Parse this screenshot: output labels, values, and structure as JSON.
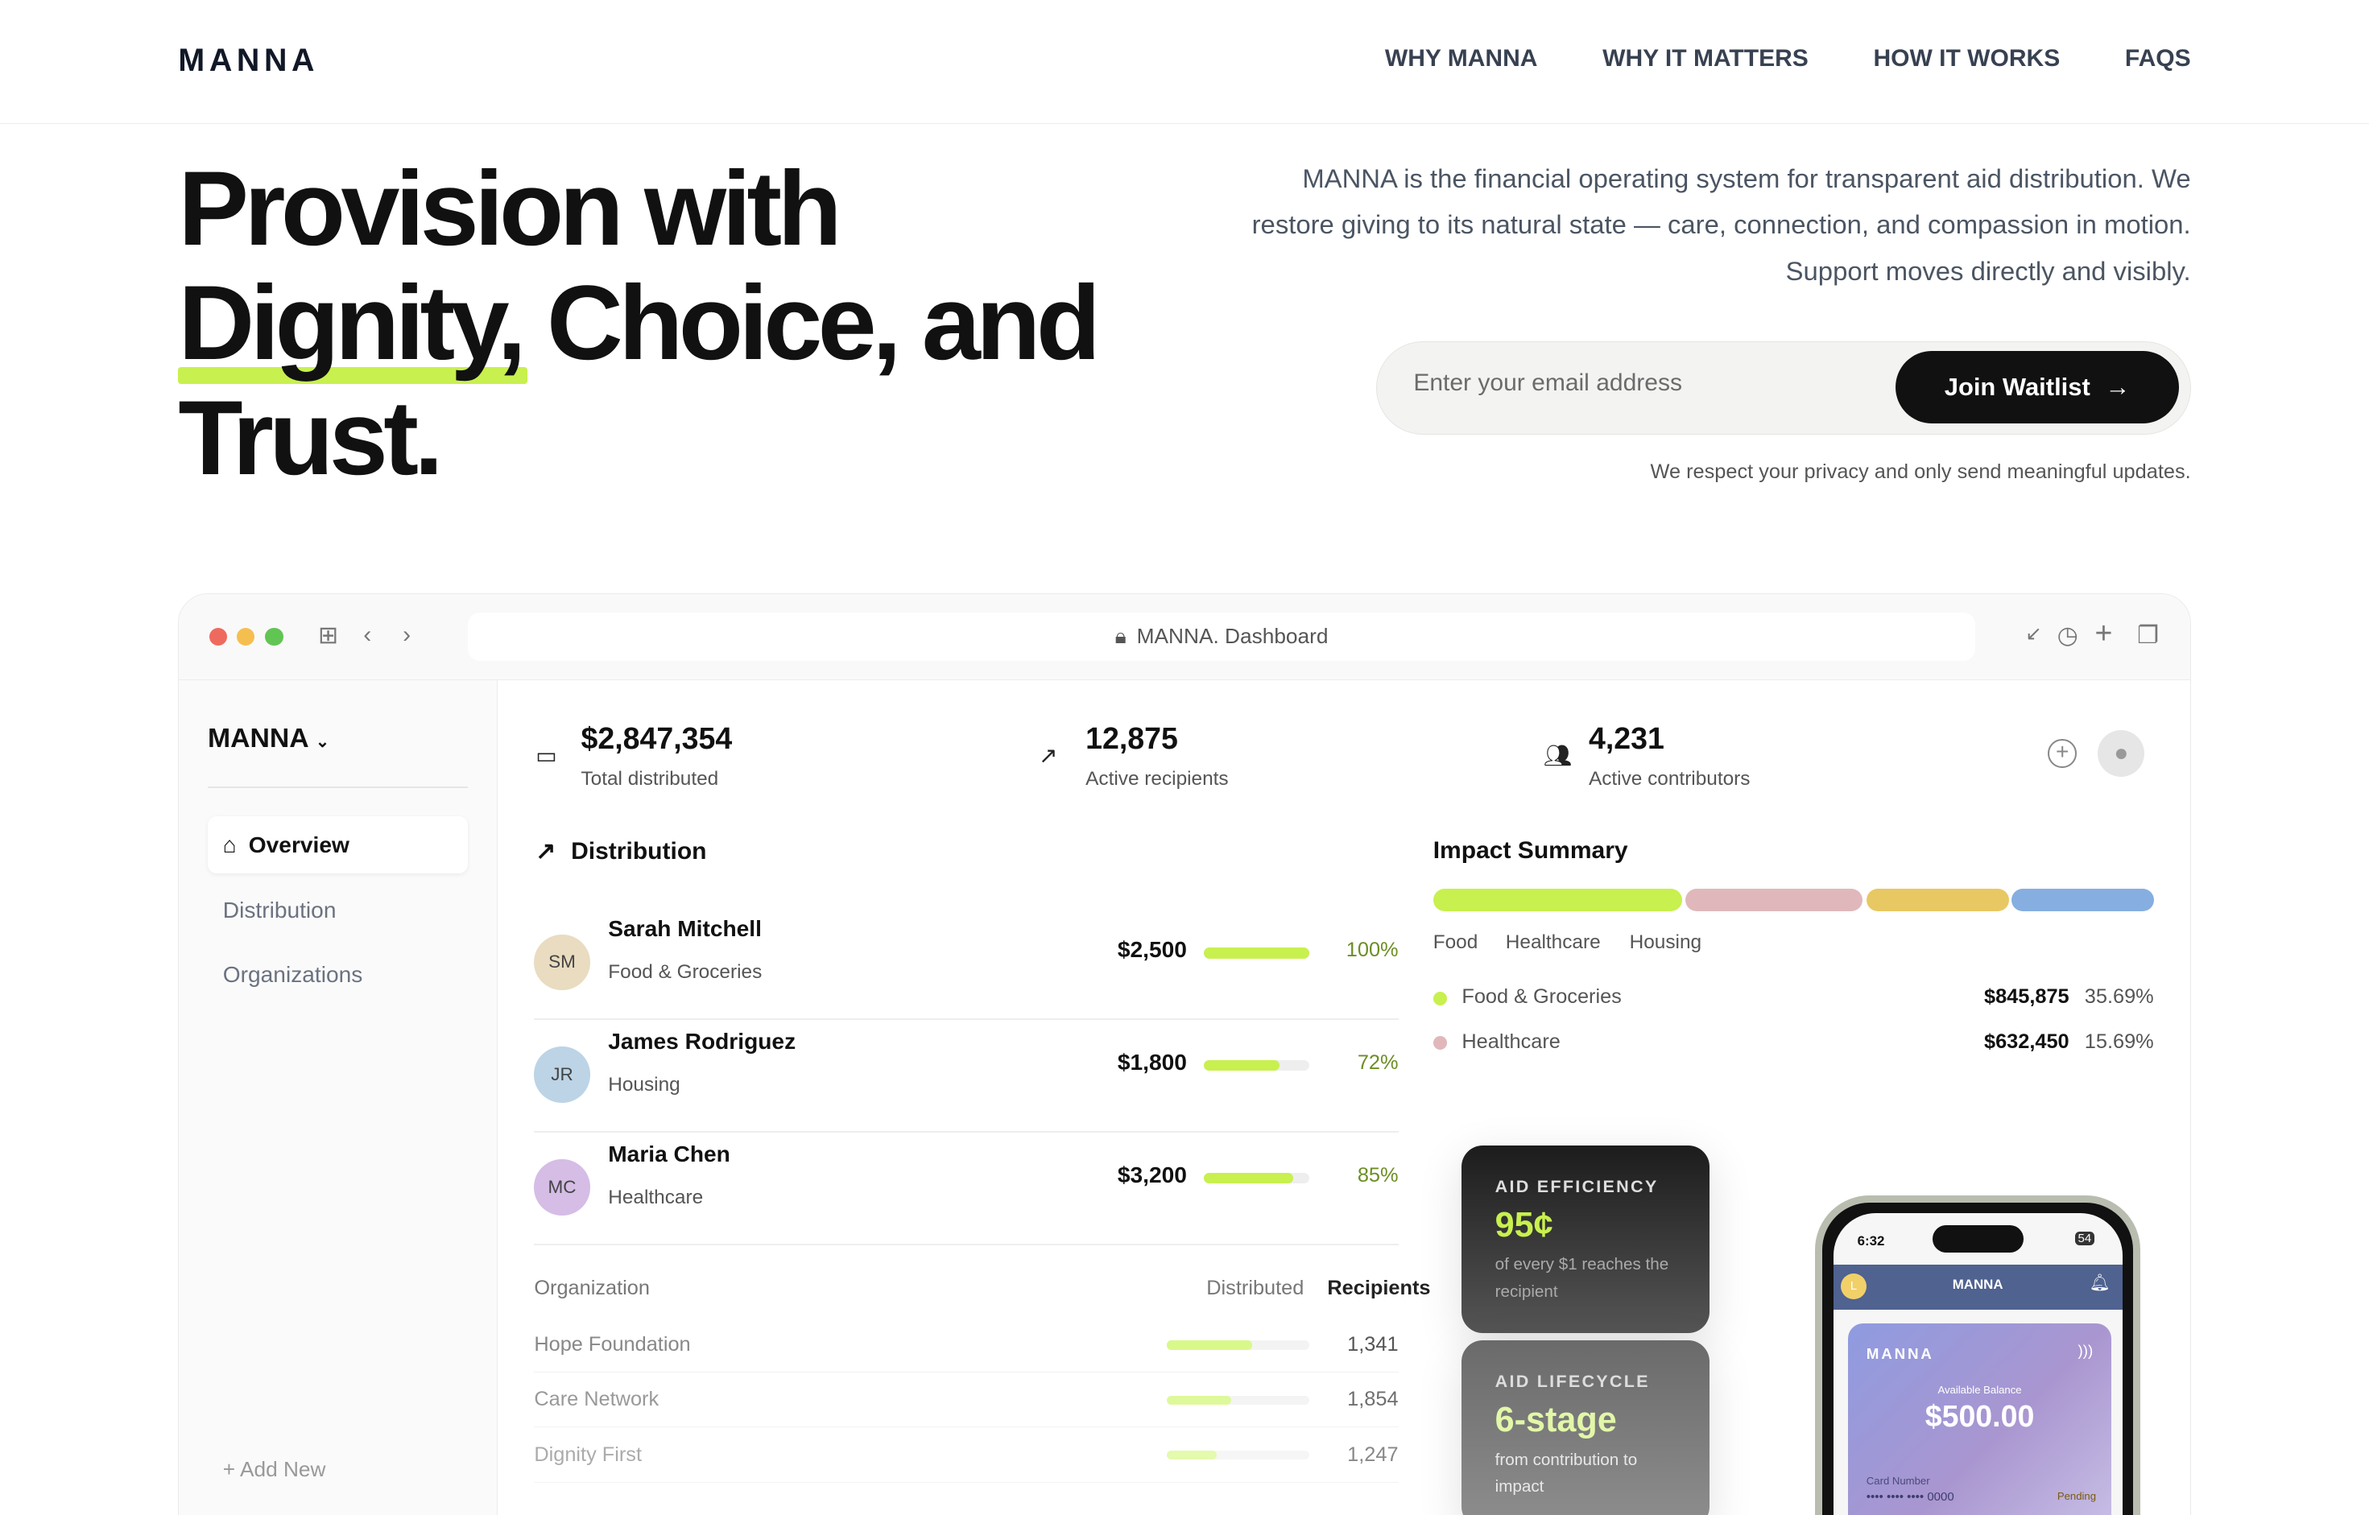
{
  "nav": {
    "logo": "MANNA",
    "links": [
      "WHY MANNA",
      "WHY IT MATTERS",
      "HOW IT WORKS",
      "FAQS"
    ]
  },
  "hero": {
    "line1": "Provision with",
    "line2": "Dignity, Choice, and",
    "line3": "Trust.",
    "lead": "MANNA is the financial operating system for transparent aid distribution. We restore giving to its natural state — care, connection, and compassion in motion. Support moves directly and visibly.",
    "email_placeholder": "Enter your email address",
    "join_label": "Join Waitlist",
    "privacy": "We respect your privacy and only send meaningful updates.",
    "accent": "#c8f04f"
  },
  "window": {
    "url": "MANNA. Dashboard"
  },
  "sidebar": {
    "brand": "MANNA",
    "items": [
      {
        "label": "Overview",
        "active": true
      },
      {
        "label": "Distribution"
      },
      {
        "label": "Organizations"
      }
    ],
    "add_new": "+ Add New"
  },
  "stats": [
    {
      "value": "$2,847,354",
      "label": "Total distributed"
    },
    {
      "value": "12,875",
      "label": "Active recipients"
    },
    {
      "value": "4,231",
      "label": "Active contributors"
    }
  ],
  "distribution": {
    "title": "Distribution",
    "rows": [
      {
        "initials": "SM",
        "name": "Sarah Mitchell",
        "category": "Food & Groceries",
        "amount": "$2,500",
        "percent": 100,
        "percent_label": "100%",
        "avatar_color": "#e9dcc0"
      },
      {
        "initials": "JR",
        "name": "James Rodriguez",
        "category": "Housing",
        "amount": "$1,800",
        "percent": 72,
        "percent_label": "72%",
        "avatar_color": "#bcd4e6"
      },
      {
        "initials": "MC",
        "name": "Maria Chen",
        "category": "Healthcare",
        "amount": "$3,200",
        "percent": 85,
        "percent_label": "85%",
        "avatar_color": "#d5bde6"
      }
    ]
  },
  "orgs": {
    "headers": [
      "Organization",
      "Distributed",
      "Recipients"
    ],
    "rows": [
      {
        "name": "Hope Foundation",
        "fill": 0.6,
        "recipients": "1,341"
      },
      {
        "name": "Care Network",
        "fill": 0.45,
        "recipients": "1,854"
      },
      {
        "name": "Dignity First",
        "fill": 0.35,
        "recipients": "1,247"
      }
    ]
  },
  "impact": {
    "title": "Impact Summary",
    "segments": [
      {
        "label": "Food",
        "color": "#c8f04f"
      },
      {
        "label": "Healthcare",
        "color": "#e0b8bb"
      },
      {
        "label": "Housing",
        "color": "#e8c862"
      },
      {
        "label": "",
        "color": "#86aee0"
      }
    ],
    "rows": [
      {
        "name": "Food & Groceries",
        "amount": "$845,875",
        "pct": "35.69%",
        "color": "#c8f04f"
      },
      {
        "name": "Healthcare",
        "amount": "$632,450",
        "pct": "15.69%",
        "color": "#e0b8bb"
      }
    ]
  },
  "cards": [
    {
      "kicker": "AID EFFICIENCY",
      "value": "95¢",
      "sub": "of every $1 reaches the recipient"
    },
    {
      "kicker": "AID LIFECYCLE",
      "value": "6-stage",
      "sub": "from contribution to impact"
    }
  ],
  "phone": {
    "time": "6:32",
    "battery": "54",
    "app": "MANNA",
    "avatar": "L",
    "card_brand": "MANNA",
    "balance_label": "Available Balance",
    "balance": "$500.00",
    "card_number_label": "Card Number",
    "card_number": "•••• •••• •••• 0000",
    "status": "Pending"
  }
}
